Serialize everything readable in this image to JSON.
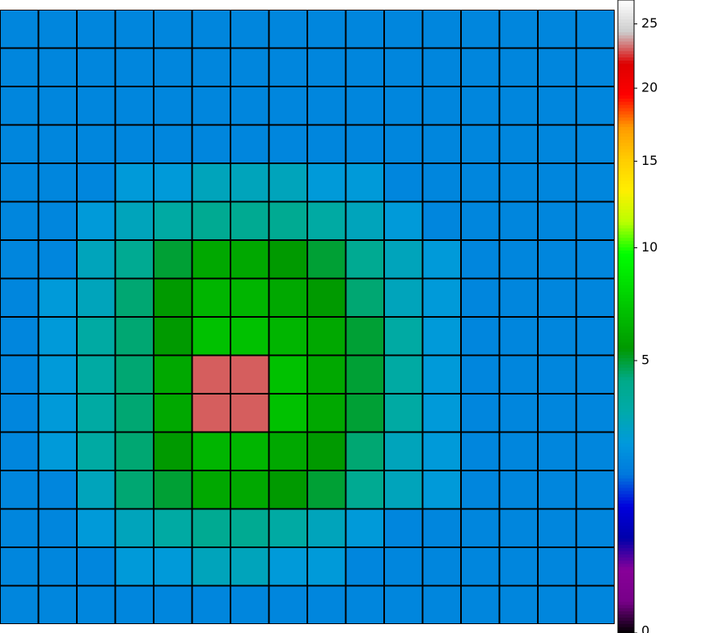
{
  "chart_data": {
    "type": "heatmap",
    "colormap": "nipy_spectral",
    "scale": "sqrt",
    "zlim": [
      0,
      27
    ],
    "zticks": [
      0,
      5,
      10,
      15,
      20,
      25
    ],
    "z": [
      [
        2,
        2,
        2,
        2,
        2,
        2,
        2,
        2,
        2,
        2,
        2,
        2,
        2,
        2,
        2,
        2
      ],
      [
        2,
        2,
        2,
        2,
        2,
        2,
        2,
        2,
        2,
        2,
        2,
        2,
        2,
        2,
        2,
        2
      ],
      [
        2,
        2,
        2,
        2,
        2,
        2,
        2,
        2,
        2,
        2,
        2,
        2,
        2,
        2,
        2,
        2
      ],
      [
        2,
        2,
        2,
        2,
        2,
        2,
        2,
        2,
        2,
        2,
        2,
        2,
        2,
        2,
        2,
        2
      ],
      [
        2,
        2,
        2,
        2.5,
        2.5,
        3,
        3,
        3,
        2.5,
        2.5,
        2,
        2,
        2,
        2,
        2,
        2
      ],
      [
        2,
        2,
        2.5,
        3,
        3.5,
        4,
        4,
        4,
        3.5,
        3,
        2.5,
        2,
        2,
        2,
        2,
        2
      ],
      [
        2,
        2,
        3,
        4,
        5,
        6,
        6,
        5.5,
        5,
        4,
        3,
        2.5,
        2,
        2,
        2,
        2
      ],
      [
        2,
        2.5,
        3,
        4.5,
        5.5,
        6.5,
        6.5,
        6,
        5.5,
        4.5,
        3,
        2.5,
        2,
        2,
        2,
        2
      ],
      [
        2,
        2.5,
        3.5,
        4.5,
        5.5,
        7,
        7,
        6.5,
        6,
        5,
        3.5,
        2.5,
        2,
        2,
        2,
        2
      ],
      [
        2,
        2.5,
        3.5,
        4.5,
        6,
        23,
        23,
        7,
        6,
        5,
        3.5,
        2.5,
        2,
        2,
        2,
        2
      ],
      [
        2,
        2.5,
        3.5,
        4.5,
        6,
        23,
        23,
        7,
        6,
        5,
        3.5,
        2.5,
        2,
        2,
        2,
        2
      ],
      [
        2,
        2.5,
        3.5,
        4.5,
        5.5,
        6.5,
        6.5,
        6,
        5.5,
        4.5,
        3,
        2.5,
        2,
        2,
        2,
        2
      ],
      [
        2,
        2,
        3,
        4.5,
        5,
        6,
        6,
        5.5,
        5,
        4,
        3,
        2.5,
        2,
        2,
        2,
        2
      ],
      [
        2,
        2,
        2.5,
        3,
        3.5,
        4,
        4,
        3.5,
        3,
        2.5,
        2,
        2,
        2,
        2,
        2,
        2
      ],
      [
        2,
        2,
        2,
        2.5,
        2.5,
        3,
        3,
        2.5,
        2.5,
        2,
        2,
        2,
        2,
        2,
        2,
        2
      ],
      [
        2,
        2,
        2,
        2,
        2,
        2,
        2,
        2,
        2,
        2,
        2,
        2,
        2,
        2,
        2,
        2
      ]
    ]
  }
}
